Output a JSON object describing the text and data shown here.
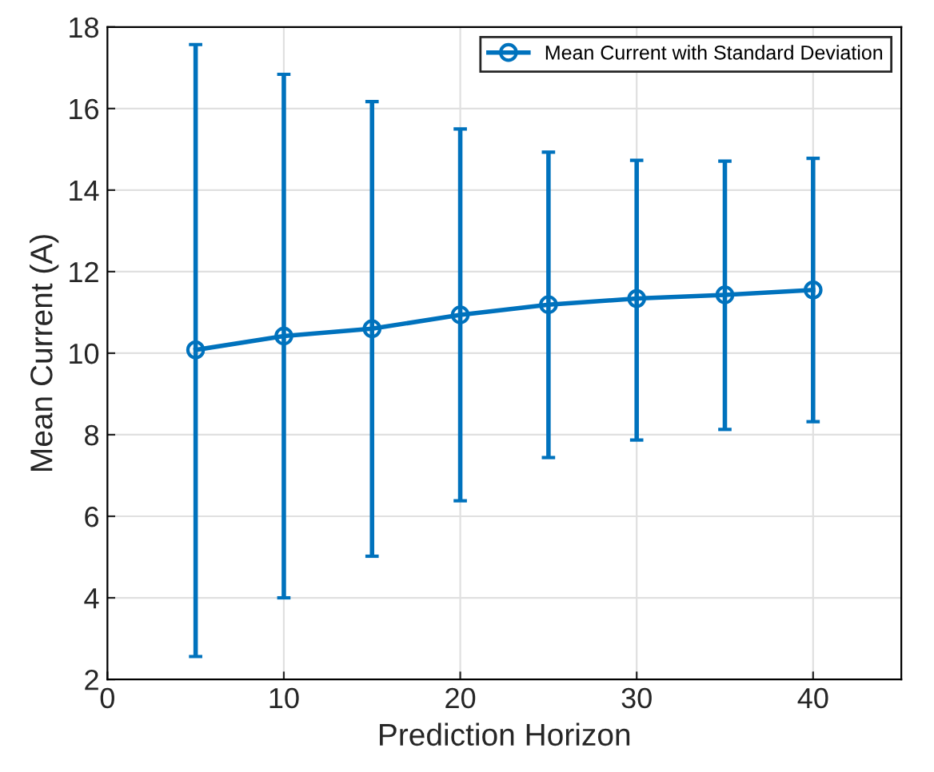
{
  "chart_data": {
    "type": "line",
    "xlabel": "Prediction Horizon",
    "ylabel": "Mean Current (A)",
    "x": [
      5,
      10,
      15,
      20,
      25,
      30,
      35,
      40
    ],
    "series": [
      {
        "name": "Mean Current with Standard Deviation",
        "color": "#0072bd",
        "values": [
          10.08,
          10.42,
          10.6,
          10.94,
          11.19,
          11.34,
          11.43,
          11.55
        ],
        "errors": [
          [
            2.56,
            17.57
          ],
          [
            4.0,
            16.84
          ],
          [
            5.02,
            16.17
          ],
          [
            6.38,
            15.5
          ],
          [
            7.44,
            14.93
          ],
          [
            7.87,
            14.73
          ],
          [
            8.13,
            14.71
          ],
          [
            8.32,
            14.78
          ]
        ]
      }
    ],
    "xlim": [
      0,
      45
    ],
    "xticks": [
      0,
      10,
      20,
      30,
      40
    ],
    "ylim": [
      2,
      18
    ],
    "yticks": [
      2,
      4,
      6,
      8,
      10,
      12,
      14,
      16,
      18
    ],
    "grid": true,
    "legend": "top right",
    "marker": "circle",
    "line_style": "solid"
  }
}
